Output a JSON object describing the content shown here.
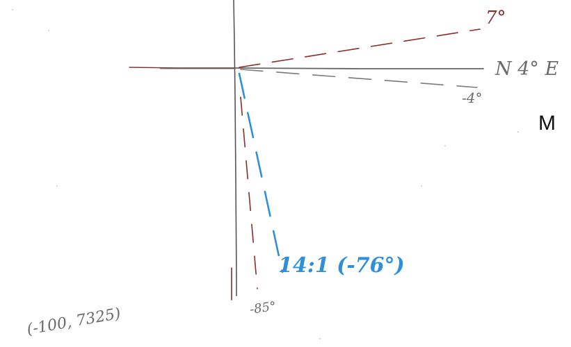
{
  "labels": {
    "angle_top": "7°",
    "bearing": "N 4° E",
    "angle_right_lower": "-4°",
    "marker_m": "M",
    "slope_label": "14:1 (-76°)",
    "angle_bottom": "-85°",
    "coordinate": "(-100, 7325)"
  },
  "colors": {
    "background": "#ffffff",
    "axis_dark": "#555555",
    "dark_red": "#8b2b2b",
    "blue": "#2f8fd9",
    "pencil_gray": "#6a6a6a",
    "print_black": "#111111"
  }
}
